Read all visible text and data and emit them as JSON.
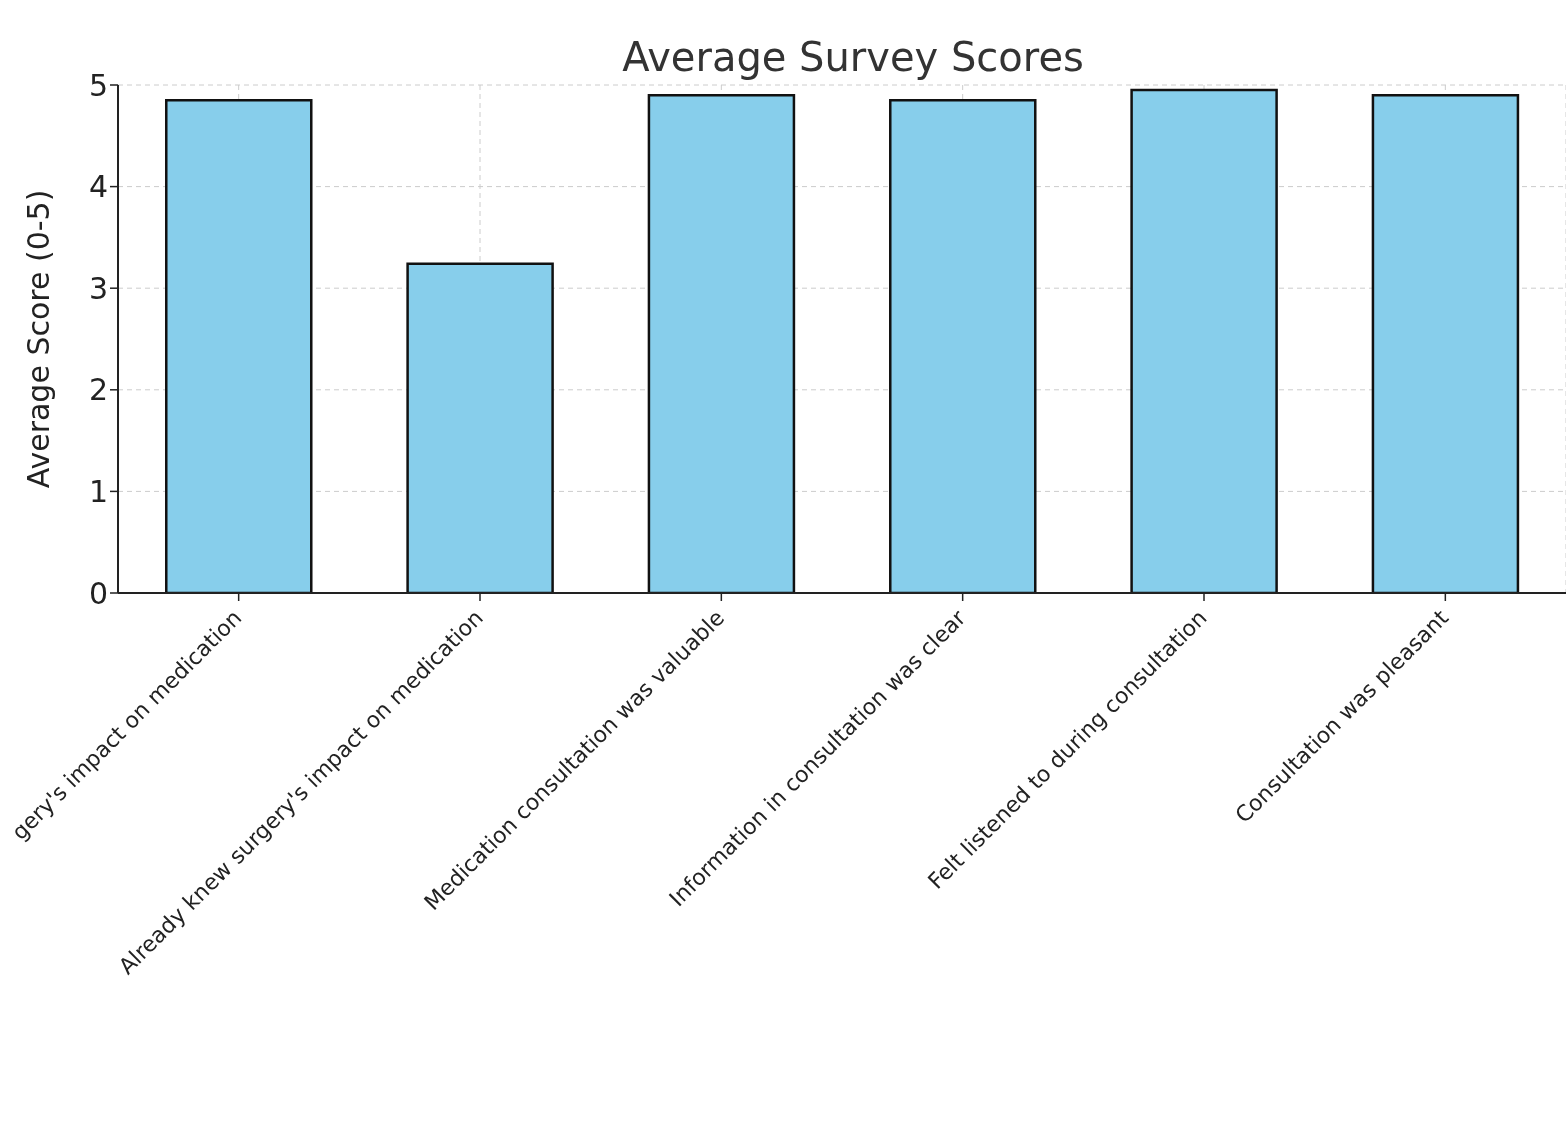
{
  "chart_data": {
    "type": "bar",
    "title": "Average Survey Scores",
    "ylabel": "Average Score (0-5)",
    "categories": [
      "gery's impact on medication",
      "Already knew surgery's impact on medication",
      "Medication consultation was valuable",
      "Information in consultation was clear",
      "Felt listened to during consultation",
      "Consultation was pleasant"
    ],
    "values": [
      4.85,
      3.24,
      4.9,
      4.85,
      4.95,
      4.9
    ],
    "color": "#87ceeb",
    "ylim": [
      0,
      5
    ],
    "yticks": [
      0,
      1,
      2,
      3,
      4,
      5
    ],
    "grid": true
  }
}
